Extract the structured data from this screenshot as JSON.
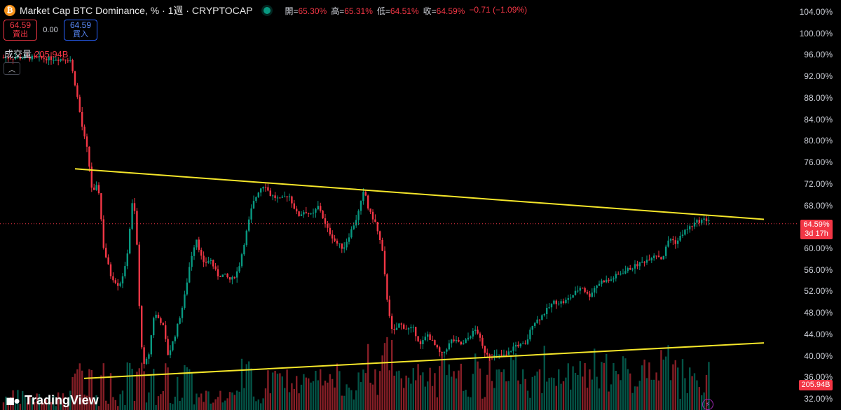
{
  "header": {
    "symbol_icon": "bitcoin-icon",
    "title": "Market Cap BTC Dominance, % · 1週 · CRYPTOCAP",
    "open_label": "開=",
    "open": "65.30%",
    "high_label": "高=",
    "high": "65.31%",
    "low_label": "低=",
    "low": "64.51%",
    "close_label": "收=",
    "close": "64.59%",
    "change": "−0.71 (−1.09%)"
  },
  "trade": {
    "sell_price": "64.59",
    "sell_label": "賣出",
    "spread": "0.00",
    "buy_price": "64.59",
    "buy_label": "買入"
  },
  "volume": {
    "label": "成交量",
    "value": "205.94B"
  },
  "price_tag": {
    "value": "64.59%",
    "countdown": "3d 17h"
  },
  "volume_tag": "205.94B",
  "brand": "TradingView",
  "colors": {
    "up": "#089981",
    "down": "#f23645",
    "trendline": "#f5e62a",
    "background": "#000000"
  },
  "chart_data": {
    "type": "candlestick",
    "y_axis": {
      "unit": "%",
      "ticks": [
        "104.00%",
        "100.00%",
        "96.00%",
        "92.00%",
        "88.00%",
        "84.00%",
        "80.00%",
        "76.00%",
        "72.00%",
        "68.00%",
        "60.00%",
        "56.00%",
        "52.00%",
        "48.00%",
        "44.00%",
        "40.00%",
        "36.00%",
        "32.00%"
      ],
      "ylim": [
        32,
        104
      ]
    },
    "price_path": [
      [
        0,
        95.5
      ],
      [
        40,
        95.5
      ],
      [
        100,
        95.2
      ],
      [
        108,
        90
      ],
      [
        118,
        82
      ],
      [
        125,
        78
      ],
      [
        132,
        70
      ],
      [
        140,
        72
      ],
      [
        148,
        60
      ],
      [
        158,
        55
      ],
      [
        170,
        53
      ],
      [
        180,
        57
      ],
      [
        190,
        70
      ],
      [
        195,
        62
      ],
      [
        200,
        45
      ],
      [
        205,
        38
      ],
      [
        212,
        40
      ],
      [
        220,
        48
      ],
      [
        232,
        46
      ],
      [
        240,
        40
      ],
      [
        250,
        44
      ],
      [
        262,
        50
      ],
      [
        272,
        58
      ],
      [
        280,
        62
      ],
      [
        290,
        57
      ],
      [
        300,
        58
      ],
      [
        310,
        55
      ],
      [
        320,
        55
      ],
      [
        330,
        54
      ],
      [
        340,
        56
      ],
      [
        350,
        62
      ],
      [
        360,
        68
      ],
      [
        370,
        71
      ],
      [
        378,
        72
      ],
      [
        385,
        70
      ],
      [
        400,
        69
      ],
      [
        412,
        70
      ],
      [
        425,
        66
      ],
      [
        435,
        67
      ],
      [
        445,
        66
      ],
      [
        455,
        68
      ],
      [
        465,
        64
      ],
      [
        480,
        61
      ],
      [
        490,
        60
      ],
      [
        500,
        63
      ],
      [
        510,
        66
      ],
      [
        520,
        71
      ],
      [
        526,
        67
      ],
      [
        535,
        65
      ],
      [
        545,
        60
      ],
      [
        552,
        51
      ],
      [
        560,
        44
      ],
      [
        570,
        46
      ],
      [
        580,
        45
      ],
      [
        590,
        45
      ],
      [
        600,
        42
      ],
      [
        610,
        44
      ],
      [
        620,
        42
      ],
      [
        630,
        40
      ],
      [
        645,
        43
      ],
      [
        660,
        42
      ],
      [
        672,
        44
      ],
      [
        680,
        45
      ],
      [
        690,
        41
      ],
      [
        700,
        40
      ],
      [
        712,
        40
      ],
      [
        722,
        40
      ],
      [
        735,
        42
      ],
      [
        750,
        42
      ],
      [
        760,
        46
      ],
      [
        770,
        47
      ],
      [
        790,
        50
      ],
      [
        805,
        50
      ],
      [
        815,
        51
      ],
      [
        830,
        53
      ],
      [
        840,
        51
      ],
      [
        850,
        53
      ],
      [
        860,
        54
      ],
      [
        870,
        54
      ],
      [
        880,
        55
      ],
      [
        895,
        56
      ],
      [
        910,
        57
      ],
      [
        925,
        58
      ],
      [
        935,
        59
      ],
      [
        945,
        58
      ],
      [
        955,
        62
      ],
      [
        965,
        61
      ],
      [
        975,
        63
      ],
      [
        985,
        64
      ],
      [
        995,
        65
      ],
      [
        1005,
        65.3
      ]
    ],
    "last_price": 64.59,
    "volume_label": "205.94B",
    "trendlines": [
      {
        "from": [
          "start",
          74.8
        ],
        "to": [
          "end",
          65.4
        ]
      },
      {
        "from": [
          "start",
          35.8
        ],
        "to": [
          "end",
          42.4
        ]
      }
    ],
    "grid": false,
    "current_price_line": 64.59
  }
}
